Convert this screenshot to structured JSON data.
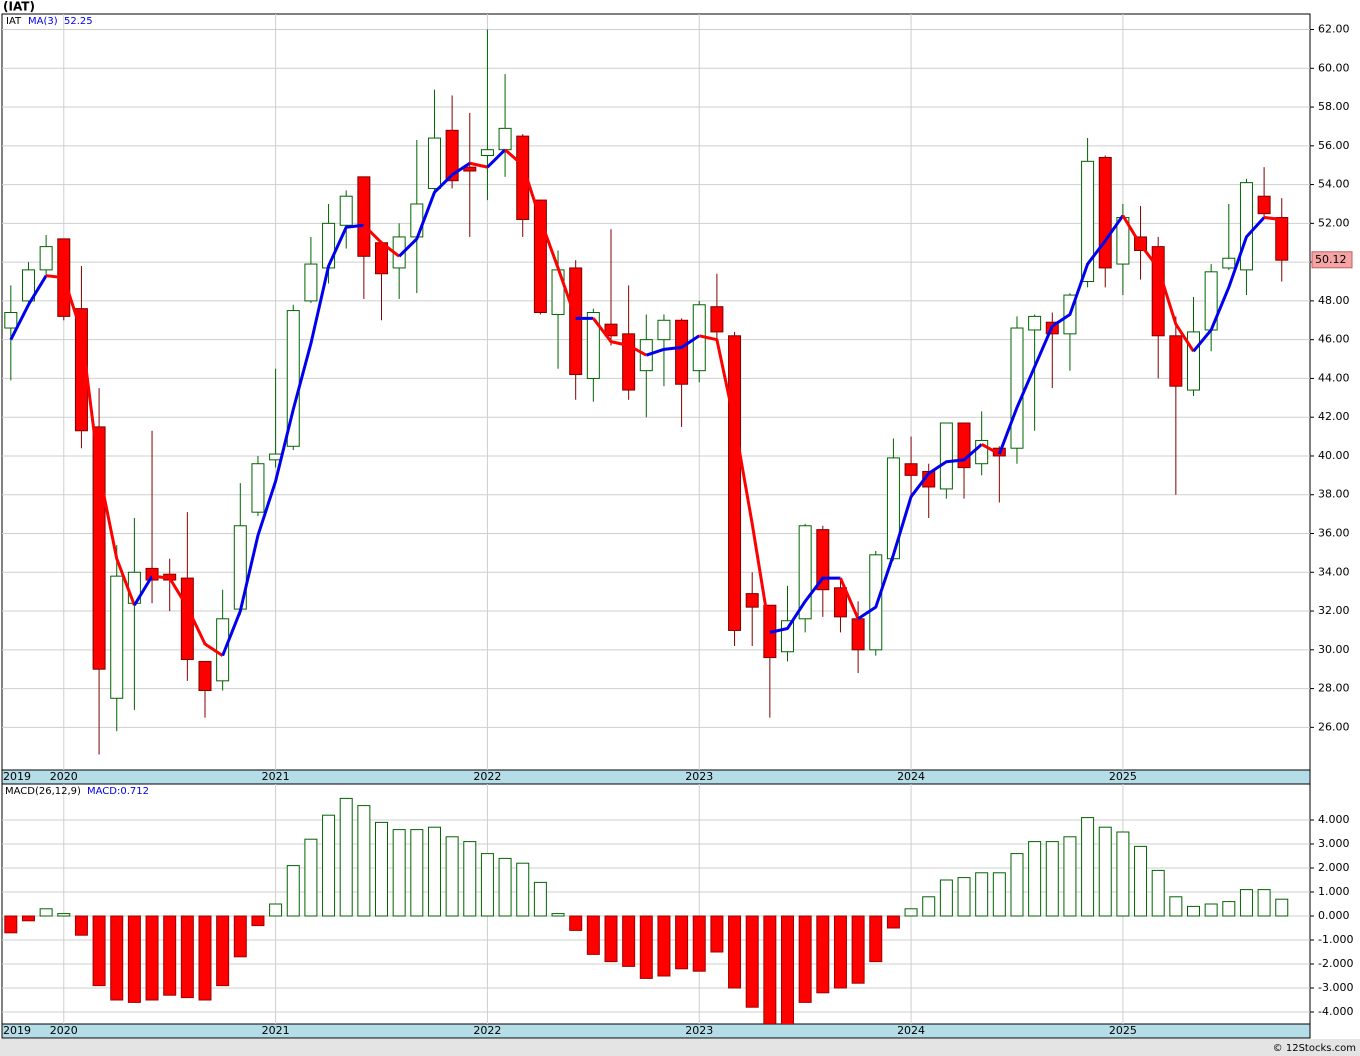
{
  "chart_data": [
    {
      "type": "candlestick",
      "title": "(IAT)",
      "ticker": "IAT",
      "up_color": "#006400",
      "down_color": "#ff0000",
      "open": [
        46.6,
        48.0,
        49.6,
        51.2,
        47.6,
        41.5,
        27.5,
        32.4,
        34.2,
        33.9,
        33.7,
        29.4,
        28.4,
        32.1,
        37.1,
        39.8,
        40.5,
        48.0,
        49.7,
        51.9,
        54.4,
        51.0,
        49.7,
        51.3,
        53.8,
        56.8,
        54.9,
        55.5,
        55.8,
        56.5,
        53.2,
        47.3,
        49.7,
        44.0,
        46.8,
        46.3,
        44.4,
        46.0,
        47.0,
        44.4,
        47.7,
        46.2,
        32.9,
        32.3,
        29.9,
        31.6,
        36.2,
        33.2,
        31.6,
        30.0,
        34.7,
        39.6,
        39.2,
        38.3,
        41.7,
        39.6,
        40.4,
        40.4,
        46.5,
        46.9,
        46.3,
        49.0,
        55.4,
        49.9,
        51.3,
        50.8,
        46.2,
        43.4,
        46.5,
        49.7,
        49.6,
        53.4,
        52.3
      ],
      "high": [
        48.8,
        50.0,
        51.4,
        51.2,
        49.8,
        43.5,
        35.4,
        36.8,
        41.3,
        34.7,
        37.1,
        29.4,
        33.1,
        38.6,
        40.0,
        44.5,
        47.8,
        51.3,
        53.0,
        53.7,
        54.4,
        51.1,
        52.0,
        56.3,
        58.9,
        58.6,
        57.7,
        62.0,
        59.7,
        56.6,
        53.2,
        50.6,
        50.1,
        47.6,
        51.7,
        48.8,
        47.3,
        47.3,
        47.1,
        48.0,
        49.4,
        46.4,
        34.0,
        32.3,
        33.3,
        36.5,
        36.4,
        33.7,
        32.5,
        35.1,
        40.9,
        41.0,
        39.6,
        41.7,
        41.7,
        42.3,
        40.5,
        47.2,
        47.3,
        47.4,
        48.4,
        56.4,
        55.5,
        53.0,
        52.9,
        51.3,
        47.2,
        48.2,
        49.9,
        53.0,
        54.3,
        54.9,
        53.3
      ],
      "low": [
        43.9,
        47.7,
        49.2,
        47.0,
        40.4,
        24.6,
        25.8,
        26.9,
        32.4,
        32.0,
        28.4,
        26.5,
        27.9,
        31.8,
        36.9,
        39.4,
        40.3,
        47.9,
        48.9,
        50.7,
        48.1,
        47.0,
        48.1,
        48.4,
        53.7,
        53.8,
        51.3,
        53.2,
        54.4,
        51.3,
        47.3,
        44.5,
        42.9,
        42.8,
        45.7,
        42.9,
        42.0,
        43.6,
        41.5,
        43.8,
        46.0,
        30.2,
        30.2,
        26.5,
        29.4,
        30.9,
        31.7,
        30.9,
        28.8,
        29.7,
        34.6,
        37.8,
        36.8,
        37.8,
        37.8,
        39.0,
        37.6,
        39.6,
        41.3,
        43.5,
        44.4,
        48.7,
        48.7,
        48.3,
        49.1,
        44.0,
        38.0,
        43.1,
        45.4,
        49.6,
        48.3,
        52.3,
        49.0
      ],
      "close": [
        47.4,
        49.6,
        50.8,
        47.2,
        41.3,
        29.0,
        33.8,
        34.0,
        33.6,
        33.6,
        29.5,
        27.9,
        31.6,
        36.4,
        39.6,
        40.1,
        47.5,
        49.9,
        52.0,
        53.4,
        50.3,
        49.4,
        51.3,
        53.0,
        56.4,
        54.2,
        54.7,
        55.8,
        56.9,
        52.2,
        47.4,
        49.6,
        44.2,
        47.4,
        46.2,
        43.4,
        46.0,
        47.0,
        43.7,
        47.8,
        46.4,
        31.0,
        32.2,
        29.6,
        31.5,
        36.4,
        33.1,
        31.7,
        30.0,
        34.9,
        39.9,
        39.0,
        38.4,
        41.7,
        39.4,
        40.8,
        40.0,
        46.6,
        47.2,
        46.3,
        48.3,
        55.2,
        49.7,
        52.3,
        50.6,
        46.2,
        43.6,
        46.4,
        49.5,
        50.2,
        54.1,
        52.5,
        50.1
      ],
      "ma": {
        "name": "MA(3)",
        "last": 52.25,
        "rise_color": "#0000ee",
        "fall_color": "#ff0000",
        "values": [
          46.0,
          47.8,
          49.3,
          49.2,
          46.4,
          39.2,
          34.7,
          32.3,
          33.8,
          33.7,
          32.2,
          30.3,
          29.7,
          32.0,
          35.9,
          38.7,
          42.4,
          45.8,
          49.8,
          51.8,
          51.9,
          51.0,
          50.3,
          51.2,
          53.6,
          54.5,
          55.1,
          54.9,
          55.8,
          55.0,
          52.2,
          49.7,
          47.1,
          47.1,
          45.9,
          45.7,
          45.2,
          45.5,
          45.6,
          46.2,
          46.0,
          41.7,
          36.5,
          30.9,
          31.1,
          32.5,
          33.7,
          33.7,
          31.6,
          32.2,
          34.9,
          37.9,
          39.1,
          39.7,
          39.8,
          40.6,
          40.1,
          42.5,
          44.6,
          46.7,
          47.3,
          49.9,
          51.1,
          52.4,
          50.9,
          49.7,
          46.8,
          45.4,
          46.5,
          48.7,
          51.3,
          52.3,
          52.2
        ]
      },
      "last_price": 50.12,
      "xlim": [
        -0.5,
        73.6
      ],
      "xticks": [
        {
          "value": 0,
          "label": "2019"
        },
        {
          "value": 3,
          "label": "2020"
        },
        {
          "value": 15,
          "label": "2021"
        },
        {
          "value": 27,
          "label": "2022"
        },
        {
          "value": 39,
          "label": "2023"
        },
        {
          "value": 51,
          "label": "2024"
        },
        {
          "value": 63,
          "label": "2025"
        }
      ],
      "ylim": [
        23.8,
        62.8
      ],
      "yticks": [
        {
          "value": 26,
          "label": "26.00"
        },
        {
          "value": 28,
          "label": "28.00"
        },
        {
          "value": 30,
          "label": "30.00"
        },
        {
          "value": 32,
          "label": "32.00"
        },
        {
          "value": 34,
          "label": "34.00"
        },
        {
          "value": 36,
          "label": "36.00"
        },
        {
          "value": 38,
          "label": "38.00"
        },
        {
          "value": 40,
          "label": "40.00"
        },
        {
          "value": 42,
          "label": "42.00"
        },
        {
          "value": 44,
          "label": "44.00"
        },
        {
          "value": 46,
          "label": "46.00"
        },
        {
          "value": 48,
          "label": "48.00"
        },
        {
          "value": 50,
          "label": "50.00"
        },
        {
          "value": 52,
          "label": "52.00"
        },
        {
          "value": 54,
          "label": "54.00"
        },
        {
          "value": 56,
          "label": "56.00"
        },
        {
          "value": 58,
          "label": "58.00"
        },
        {
          "value": 60,
          "label": "60.00"
        },
        {
          "value": 62,
          "label": "62.00"
        }
      ],
      "grid": true
    },
    {
      "type": "bar",
      "title": "MACD(26,12,9)",
      "value_title": "MACD:0.712",
      "pos_color": "#006400",
      "neg_color": "#ff0000",
      "values": [
        -0.7,
        -0.2,
        0.3,
        0.1,
        -0.8,
        -2.9,
        -3.5,
        -3.6,
        -3.5,
        -3.3,
        -3.4,
        -3.5,
        -2.9,
        -1.7,
        -0.4,
        0.5,
        2.1,
        3.2,
        4.2,
        4.9,
        4.6,
        3.9,
        3.6,
        3.6,
        3.7,
        3.3,
        3.1,
        2.6,
        2.4,
        2.2,
        1.4,
        0.1,
        -0.6,
        -1.6,
        -1.9,
        -2.1,
        -2.6,
        -2.5,
        -2.2,
        -2.3,
        -1.5,
        -3.0,
        -3.8,
        -4.5,
        -4.6,
        -3.6,
        -3.2,
        -3.0,
        -2.8,
        -1.9,
        -0.5,
        0.3,
        0.8,
        1.5,
        1.6,
        1.8,
        1.8,
        2.6,
        3.1,
        3.1,
        3.3,
        4.1,
        3.7,
        3.5,
        2.9,
        1.9,
        0.8,
        0.4,
        0.5,
        0.6,
        1.1,
        1.1,
        0.7
      ],
      "xlim": [
        -0.5,
        73.6
      ],
      "xticks": [
        {
          "value": 0,
          "label": "2019"
        },
        {
          "value": 3,
          "label": "2020"
        },
        {
          "value": 15,
          "label": "2021"
        },
        {
          "value": 27,
          "label": "2022"
        },
        {
          "value": 39,
          "label": "2023"
        },
        {
          "value": 51,
          "label": "2024"
        },
        {
          "value": 63,
          "label": "2025"
        }
      ],
      "ylim": [
        -4.5,
        5.5
      ],
      "yticks": [
        {
          "value": 4,
          "label": "4.000"
        },
        {
          "value": 3,
          "label": "3.000"
        },
        {
          "value": 2,
          "label": "2.000"
        },
        {
          "value": 1,
          "label": "1.000"
        },
        {
          "value": 0,
          "label": "0.000"
        },
        {
          "value": -1,
          "label": "-1.000"
        },
        {
          "value": -2,
          "label": "-2.000"
        },
        {
          "value": -3,
          "label": "-3.000"
        },
        {
          "value": -4,
          "label": "-4.000"
        }
      ],
      "grid": true
    }
  ],
  "footer": "© 12Stocks.com"
}
